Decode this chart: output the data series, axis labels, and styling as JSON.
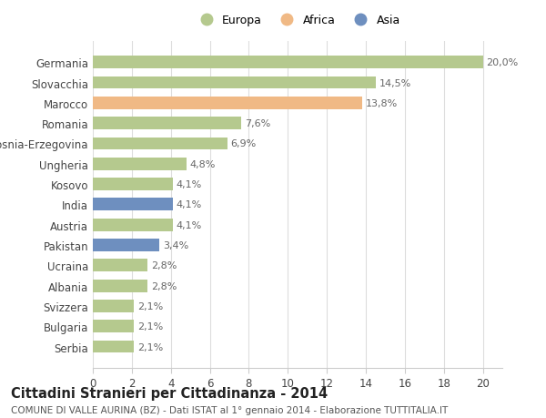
{
  "countries": [
    "Serbia",
    "Bulgaria",
    "Svizzera",
    "Albania",
    "Ucraina",
    "Pakistan",
    "Austria",
    "India",
    "Kosovo",
    "Ungheria",
    "Bosnia-Erzegovina",
    "Romania",
    "Marocco",
    "Slovacchia",
    "Germania"
  ],
  "values": [
    2.1,
    2.1,
    2.1,
    2.8,
    2.8,
    3.4,
    4.1,
    4.1,
    4.1,
    4.8,
    6.9,
    7.6,
    13.8,
    14.5,
    20.0
  ],
  "labels": [
    "2,1%",
    "2,1%",
    "2,1%",
    "2,8%",
    "2,8%",
    "3,4%",
    "4,1%",
    "4,1%",
    "4,1%",
    "4,8%",
    "6,9%",
    "7,6%",
    "13,8%",
    "14,5%",
    "20,0%"
  ],
  "continents": [
    "Europa",
    "Europa",
    "Europa",
    "Europa",
    "Europa",
    "Asia",
    "Europa",
    "Asia",
    "Europa",
    "Europa",
    "Europa",
    "Europa",
    "Africa",
    "Europa",
    "Europa"
  ],
  "colors": {
    "Europa": "#b5c98e",
    "Africa": "#f0b985",
    "Asia": "#6e8fbf"
  },
  "xlim": [
    0,
    21
  ],
  "xticks": [
    0,
    2,
    4,
    6,
    8,
    10,
    12,
    14,
    16,
    18,
    20
  ],
  "title": "Cittadini Stranieri per Cittadinanza - 2014",
  "subtitle": "COMUNE DI VALLE AURINA (BZ) - Dati ISTAT al 1° gennaio 2014 - Elaborazione TUTTITALIA.IT",
  "bg_color": "#ffffff",
  "bar_height": 0.62,
  "label_fontsize": 8.0,
  "title_fontsize": 10.5,
  "subtitle_fontsize": 7.5,
  "ytick_fontsize": 8.5,
  "xtick_fontsize": 8.5
}
